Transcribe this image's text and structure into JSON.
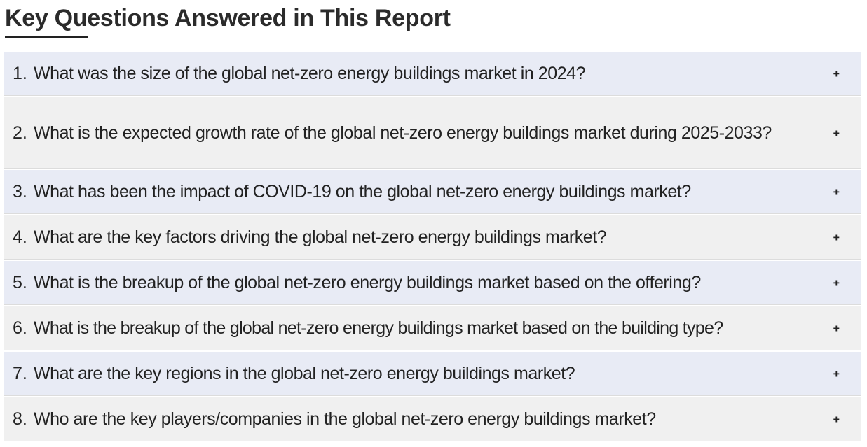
{
  "heading": "Key Questions Answered in This Report",
  "toggle_symbol": "+",
  "questions": [
    {
      "number": "1.",
      "text": "What was the size of the global net-zero energy buildings market in 2024?"
    },
    {
      "number": "2.",
      "text": "What is the expected growth rate of the global net-zero energy buildings market during 2025-2033?"
    },
    {
      "number": "3.",
      "text": "What has been the impact of COVID-19 on the global net-zero energy buildings market?"
    },
    {
      "number": "4.",
      "text": "What are the key factors driving the global net-zero energy buildings market?"
    },
    {
      "number": "5.",
      "text": "What is the breakup of the global net-zero energy buildings market based on the offering?"
    },
    {
      "number": "6.",
      "text": "What is the breakup of the global net-zero energy buildings market based on the building type?"
    },
    {
      "number": "7.",
      "text": "What are the key regions in the global net-zero energy buildings market?"
    },
    {
      "number": "8.",
      "text": "Who are the key players/companies in the global net-zero energy buildings market?"
    }
  ],
  "colors": {
    "row_shade_a": "#e8ebf5",
    "row_shade_b": "#f0f0f0",
    "text": "#222222",
    "underline": "#222222"
  }
}
